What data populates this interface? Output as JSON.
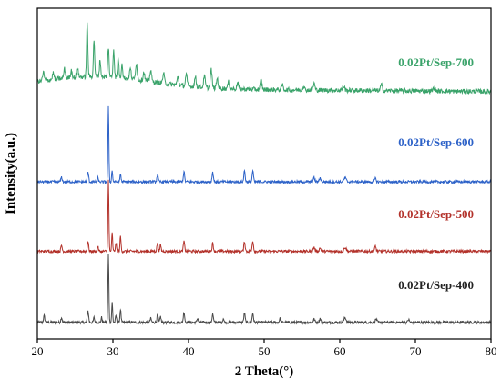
{
  "chart_data": {
    "type": "line",
    "xlabel": "2 Theta(°)",
    "ylabel": "Intensity(a.u.)",
    "xlim": [
      20,
      80
    ],
    "x_ticks": [
      "20",
      "30",
      "40",
      "50",
      "60",
      "70",
      "80"
    ],
    "y_ticks_shown": false,
    "grid": false,
    "legend": "inline-right",
    "series": [
      {
        "name": "0.02Pt/Sep-400",
        "color": "#4a4a4a",
        "baseline": 0.05,
        "noise": 0.004,
        "peaks": [
          {
            "x": 20.9,
            "h": 0.02,
            "w": 0.12
          },
          {
            "x": 23.2,
            "h": 0.015,
            "w": 0.12
          },
          {
            "x": 26.7,
            "h": 0.035,
            "w": 0.12
          },
          {
            "x": 27.5,
            "h": 0.015,
            "w": 0.1
          },
          {
            "x": 28.5,
            "h": 0.015,
            "w": 0.1
          },
          {
            "x": 29.4,
            "h": 0.205,
            "w": 0.09
          },
          {
            "x": 29.9,
            "h": 0.06,
            "w": 0.09
          },
          {
            "x": 30.4,
            "h": 0.02,
            "w": 0.1
          },
          {
            "x": 31.0,
            "h": 0.04,
            "w": 0.1
          },
          {
            "x": 35.0,
            "h": 0.012,
            "w": 0.12
          },
          {
            "x": 35.9,
            "h": 0.022,
            "w": 0.12
          },
          {
            "x": 36.3,
            "h": 0.018,
            "w": 0.1
          },
          {
            "x": 39.4,
            "h": 0.032,
            "w": 0.12
          },
          {
            "x": 41.2,
            "h": 0.012,
            "w": 0.12
          },
          {
            "x": 43.2,
            "h": 0.025,
            "w": 0.12
          },
          {
            "x": 44.6,
            "h": 0.012,
            "w": 0.1
          },
          {
            "x": 47.4,
            "h": 0.028,
            "w": 0.12
          },
          {
            "x": 48.5,
            "h": 0.028,
            "w": 0.12
          },
          {
            "x": 52.1,
            "h": 0.012,
            "w": 0.12
          },
          {
            "x": 56.6,
            "h": 0.01,
            "w": 0.15
          },
          {
            "x": 57.4,
            "h": 0.012,
            "w": 0.15
          },
          {
            "x": 60.7,
            "h": 0.014,
            "w": 0.2
          },
          {
            "x": 64.8,
            "h": 0.01,
            "w": 0.15
          },
          {
            "x": 69.1,
            "h": 0.008,
            "w": 0.15
          }
        ]
      },
      {
        "name": "0.02Pt/Sep-500",
        "color": "#b3322b",
        "baseline": 0.265,
        "noise": 0.004,
        "peaks": [
          {
            "x": 23.2,
            "h": 0.018,
            "w": 0.12
          },
          {
            "x": 26.7,
            "h": 0.03,
            "w": 0.12
          },
          {
            "x": 28.0,
            "h": 0.015,
            "w": 0.1
          },
          {
            "x": 29.4,
            "h": 0.215,
            "w": 0.09
          },
          {
            "x": 29.9,
            "h": 0.055,
            "w": 0.09
          },
          {
            "x": 30.4,
            "h": 0.025,
            "w": 0.1
          },
          {
            "x": 31.0,
            "h": 0.045,
            "w": 0.1
          },
          {
            "x": 35.9,
            "h": 0.025,
            "w": 0.12
          },
          {
            "x": 36.3,
            "h": 0.02,
            "w": 0.1
          },
          {
            "x": 39.4,
            "h": 0.03,
            "w": 0.12
          },
          {
            "x": 43.2,
            "h": 0.025,
            "w": 0.12
          },
          {
            "x": 47.4,
            "h": 0.03,
            "w": 0.12
          },
          {
            "x": 48.5,
            "h": 0.032,
            "w": 0.12
          },
          {
            "x": 56.6,
            "h": 0.012,
            "w": 0.15
          },
          {
            "x": 57.4,
            "h": 0.01,
            "w": 0.15
          },
          {
            "x": 60.7,
            "h": 0.012,
            "w": 0.2
          },
          {
            "x": 64.7,
            "h": 0.014,
            "w": 0.15
          }
        ]
      },
      {
        "name": "0.02Pt/Sep-600",
        "color": "#2d62c8",
        "baseline": 0.475,
        "noise": 0.004,
        "peaks": [
          {
            "x": 23.2,
            "h": 0.014,
            "w": 0.12
          },
          {
            "x": 26.7,
            "h": 0.03,
            "w": 0.12
          },
          {
            "x": 28.0,
            "h": 0.012,
            "w": 0.1
          },
          {
            "x": 29.4,
            "h": 0.225,
            "w": 0.09
          },
          {
            "x": 29.9,
            "h": 0.035,
            "w": 0.09
          },
          {
            "x": 31.0,
            "h": 0.025,
            "w": 0.1
          },
          {
            "x": 35.9,
            "h": 0.022,
            "w": 0.12
          },
          {
            "x": 39.4,
            "h": 0.03,
            "w": 0.12
          },
          {
            "x": 43.2,
            "h": 0.03,
            "w": 0.12
          },
          {
            "x": 47.4,
            "h": 0.034,
            "w": 0.12
          },
          {
            "x": 48.5,
            "h": 0.034,
            "w": 0.12
          },
          {
            "x": 56.6,
            "h": 0.012,
            "w": 0.15
          },
          {
            "x": 57.4,
            "h": 0.012,
            "w": 0.15
          },
          {
            "x": 60.7,
            "h": 0.012,
            "w": 0.2
          },
          {
            "x": 64.7,
            "h": 0.01,
            "w": 0.15
          }
        ]
      },
      {
        "name": "0.02Pt/Sep-700",
        "color": "#3aa36a",
        "baseline": 0.76,
        "noise": 0.007,
        "peaks": [
          {
            "x": 20.8,
            "h": 0.025,
            "w": 0.15
          },
          {
            "x": 22.1,
            "h": 0.02,
            "w": 0.15
          },
          {
            "x": 23.6,
            "h": 0.028,
            "w": 0.15
          },
          {
            "x": 24.5,
            "h": 0.022,
            "w": 0.15
          },
          {
            "x": 25.3,
            "h": 0.03,
            "w": 0.15
          },
          {
            "x": 26.6,
            "h": 0.16,
            "w": 0.12
          },
          {
            "x": 27.5,
            "h": 0.11,
            "w": 0.12
          },
          {
            "x": 28.3,
            "h": 0.05,
            "w": 0.12
          },
          {
            "x": 29.4,
            "h": 0.09,
            "w": 0.12
          },
          {
            "x": 30.1,
            "h": 0.085,
            "w": 0.12
          },
          {
            "x": 30.7,
            "h": 0.06,
            "w": 0.12
          },
          {
            "x": 31.2,
            "h": 0.045,
            "w": 0.12
          },
          {
            "x": 32.3,
            "h": 0.03,
            "w": 0.15
          },
          {
            "x": 33.1,
            "h": 0.05,
            "w": 0.15
          },
          {
            "x": 34.1,
            "h": 0.025,
            "w": 0.15
          },
          {
            "x": 35.0,
            "h": 0.035,
            "w": 0.15
          },
          {
            "x": 36.7,
            "h": 0.03,
            "w": 0.15
          },
          {
            "x": 38.6,
            "h": 0.025,
            "w": 0.15
          },
          {
            "x": 39.7,
            "h": 0.035,
            "w": 0.15
          },
          {
            "x": 40.9,
            "h": 0.03,
            "w": 0.15
          },
          {
            "x": 42.1,
            "h": 0.035,
            "w": 0.15
          },
          {
            "x": 43.0,
            "h": 0.055,
            "w": 0.15
          },
          {
            "x": 43.8,
            "h": 0.03,
            "w": 0.15
          },
          {
            "x": 45.3,
            "h": 0.02,
            "w": 0.15
          },
          {
            "x": 46.5,
            "h": 0.02,
            "w": 0.15
          },
          {
            "x": 49.6,
            "h": 0.028,
            "w": 0.15
          },
          {
            "x": 52.4,
            "h": 0.015,
            "w": 0.15
          },
          {
            "x": 55.2,
            "h": 0.012,
            "w": 0.15
          },
          {
            "x": 56.6,
            "h": 0.02,
            "w": 0.15
          },
          {
            "x": 60.5,
            "h": 0.012,
            "w": 0.2
          },
          {
            "x": 65.5,
            "h": 0.018,
            "w": 0.15
          },
          {
            "x": 72.5,
            "h": 0.01,
            "w": 0.2
          }
        ]
      }
    ]
  }
}
